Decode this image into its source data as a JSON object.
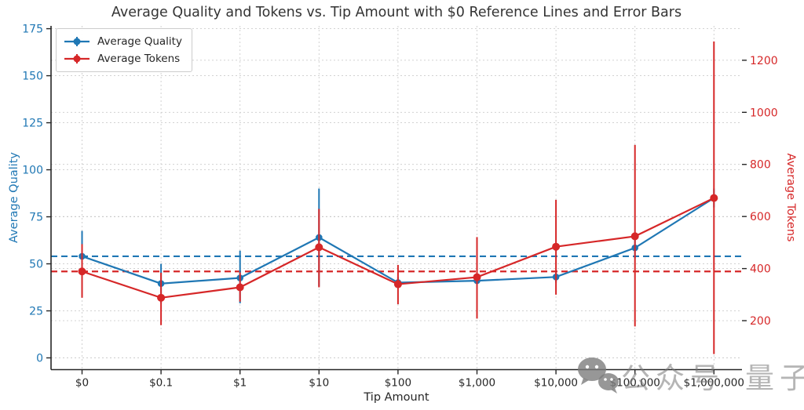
{
  "chart_data": {
    "type": "line",
    "title": "Average Quality and Tokens vs. Tip Amount with $0 Reference Lines and Error Bars",
    "xlabel": "Tip Amount",
    "categories": [
      "$0",
      "$0.1",
      "$1",
      "$10",
      "$100",
      "$1,000",
      "$10,000",
      "$100,000",
      "$1,000,000"
    ],
    "grid": true,
    "legend": {
      "position": "upper left",
      "entries": [
        "Average Quality",
        "Average Tokens"
      ]
    },
    "left_axis": {
      "label": "Average Quality",
      "color": "#1f77b4",
      "ticks": [
        0,
        25,
        50,
        75,
        100,
        125,
        150,
        175
      ],
      "ylim": [
        -6.25,
        176.5
      ]
    },
    "right_axis": {
      "label": "Average Tokens",
      "color": "#d62728",
      "ticks": [
        200,
        400,
        600,
        800,
        1000,
        1200
      ],
      "ylim": [
        12,
        1332
      ]
    },
    "series": [
      {
        "name": "Average Quality",
        "axis": "left",
        "color": "#1f77b4",
        "values": [
          54,
          39.5,
          42.5,
          64,
          40,
          41,
          43,
          58.5,
          85
        ],
        "error_range": [
          [
            41,
            67.5
          ],
          [
            29,
            50
          ],
          [
            29,
            57
          ],
          [
            38,
            90
          ],
          [
            37,
            43
          ],
          [
            38,
            44
          ],
          [
            40,
            46
          ],
          [
            53,
            64
          ],
          [
            80,
            90
          ]
        ]
      },
      {
        "name": "Average Tokens",
        "axis": "right",
        "color": "#d62728",
        "values": [
          389,
          288,
          328,
          482,
          340,
          367,
          484,
          524,
          671
        ],
        "error_range": [
          [
            288,
            494
          ],
          [
            183,
            384
          ],
          [
            273,
            385
          ],
          [
            328,
            629
          ],
          [
            263,
            414
          ],
          [
            208,
            521
          ],
          [
            300,
            664
          ],
          [
            178,
            875
          ],
          [
            72,
            1272
          ]
        ]
      }
    ],
    "reference_lines": [
      {
        "axis": "left",
        "value": 54,
        "color": "#1f77b4",
        "style": "dashed"
      },
      {
        "axis": "right",
        "value": 389,
        "color": "#d62728",
        "style": "dashed"
      }
    ]
  },
  "watermark": {
    "icon": "wechat-icon",
    "text": "公众号",
    "text2": "量子位"
  }
}
